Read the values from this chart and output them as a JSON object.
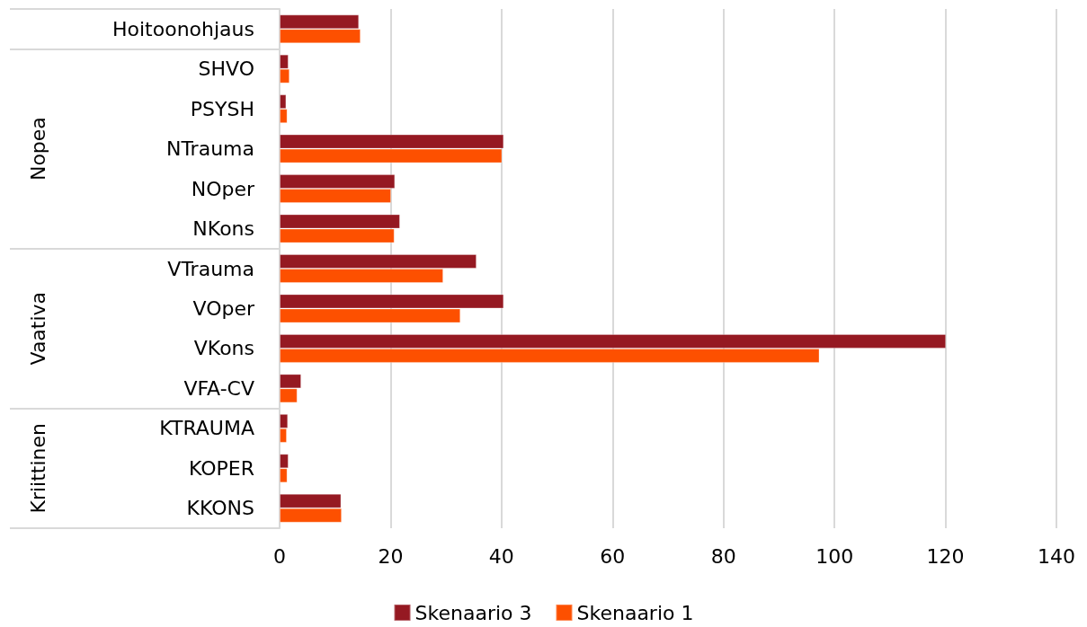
{
  "chart_data": {
    "type": "bar",
    "orientation": "horizontal",
    "categories": [
      "Hoitoonohjaus",
      "SHVO",
      "PSYSH",
      "NTrauma",
      "NOper",
      "NKons",
      "VTrauma",
      "VOper",
      "VKons",
      "VFA-CV",
      "KTRAUMA",
      "KOPER",
      "KKONS"
    ],
    "series": [
      {
        "name": "Skenaario 3",
        "color": "#951922",
        "values": [
          14.3,
          1.6,
          1.2,
          40.4,
          20.8,
          21.7,
          35.5,
          40.4,
          120.1,
          3.9,
          1.5,
          1.6,
          11.1
        ]
      },
      {
        "name": "Skenaario 1",
        "color": "#fd5000",
        "values": [
          14.6,
          1.8,
          1.4,
          40.1,
          20.1,
          20.7,
          29.5,
          32.6,
          97.3,
          3.2,
          1.3,
          1.4,
          11.2
        ]
      }
    ],
    "xlim": [
      0,
      140
    ],
    "xticks": [
      0,
      20,
      40,
      60,
      80,
      100,
      120,
      140
    ],
    "annotations": [
      "Nopea",
      "Vaativa",
      "Kriittinen"
    ],
    "grid": "x",
    "legend": "bottom"
  }
}
